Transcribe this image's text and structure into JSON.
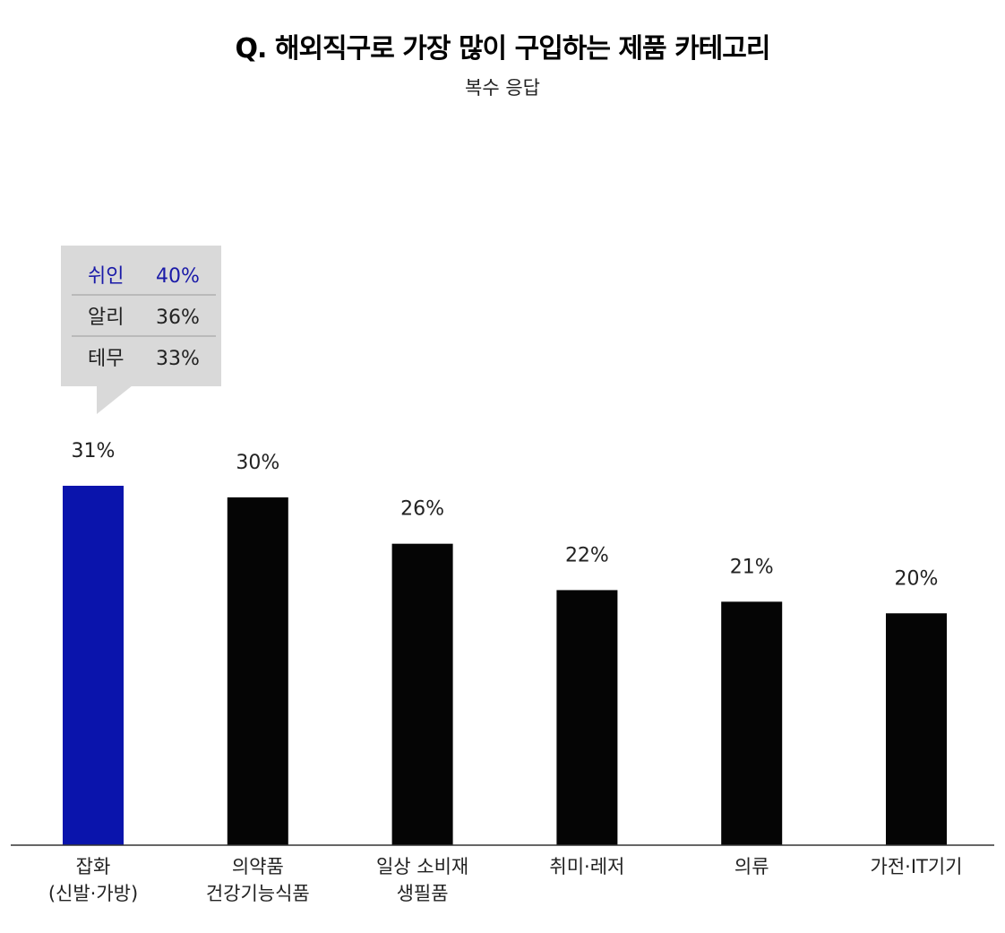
{
  "chart_data": {
    "type": "bar",
    "title": "Q. 해외직구로 가장 많이 구입하는 제품 카테고리",
    "subtitle": "복수 응답",
    "categories": [
      [
        "잡화",
        "(신발·가방)"
      ],
      [
        "의약품",
        "건강기능식품"
      ],
      [
        "일상 소비재",
        "생필품"
      ],
      [
        "취미·레저"
      ],
      [
        "의류"
      ],
      [
        "가전·IT기기"
      ]
    ],
    "values": [
      31,
      30,
      26,
      22,
      21,
      20
    ],
    "value_labels": [
      "31%",
      "30%",
      "26%",
      "22%",
      "21%",
      "20%"
    ],
    "ylim": [
      0,
      31
    ],
    "highlight_index": 0,
    "colors": {
      "highlight": "#0a14ac",
      "default": "#050505",
      "tooltip_bg": "#d9d9d9",
      "tooltip_accent": "#1a1aa8",
      "axis": "#333333"
    },
    "grid": false,
    "legend": "none",
    "breakdown": {
      "for_category_index": 0,
      "rows": [
        {
          "name": "쉬인",
          "value": 40,
          "label": "40%",
          "highlight": true
        },
        {
          "name": "알리",
          "value": 36,
          "label": "36%",
          "highlight": false
        },
        {
          "name": "테무",
          "value": 33,
          "label": "33%",
          "highlight": false
        }
      ]
    }
  }
}
